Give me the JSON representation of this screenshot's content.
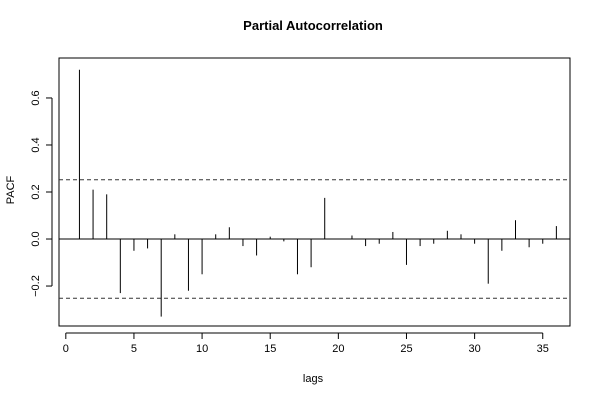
{
  "chart_data": {
    "type": "bar",
    "title": "Partial Autocorrelation",
    "xlabel": "lags",
    "ylabel": "PACF",
    "xlim": [
      -0.5,
      37
    ],
    "ylim": [
      -0.37,
      0.77
    ],
    "x_ticks": [
      0,
      5,
      10,
      15,
      20,
      25,
      30,
      35
    ],
    "y_ticks": [
      -0.2,
      0.0,
      0.2,
      0.4,
      0.6
    ],
    "y_tick_labels": [
      "−0.2",
      "0.0",
      "0.2",
      "0.4",
      "0.6"
    ],
    "x_tick_labels": [
      "0",
      "5",
      "10",
      "15",
      "20",
      "25",
      "30",
      "35"
    ],
    "confidence_bounds": [
      0.252,
      -0.252
    ],
    "grid": false,
    "lags": [
      1,
      2,
      3,
      4,
      5,
      6,
      7,
      8,
      9,
      10,
      11,
      12,
      13,
      14,
      15,
      16,
      17,
      18,
      19,
      20,
      21,
      22,
      23,
      24,
      25,
      26,
      27,
      28,
      29,
      30,
      31,
      32,
      33,
      34,
      35,
      36
    ],
    "values": [
      0.72,
      0.21,
      0.19,
      -0.23,
      -0.05,
      -0.04,
      -0.33,
      0.02,
      -0.22,
      -0.15,
      0.02,
      0.05,
      -0.03,
      -0.07,
      0.01,
      -0.01,
      -0.15,
      -0.12,
      0.175,
      0.0,
      0.015,
      -0.03,
      -0.02,
      0.03,
      -0.11,
      -0.03,
      -0.02,
      0.035,
      0.02,
      -0.02,
      -0.19,
      -0.05,
      0.08,
      -0.035,
      -0.02,
      0.055
    ]
  }
}
